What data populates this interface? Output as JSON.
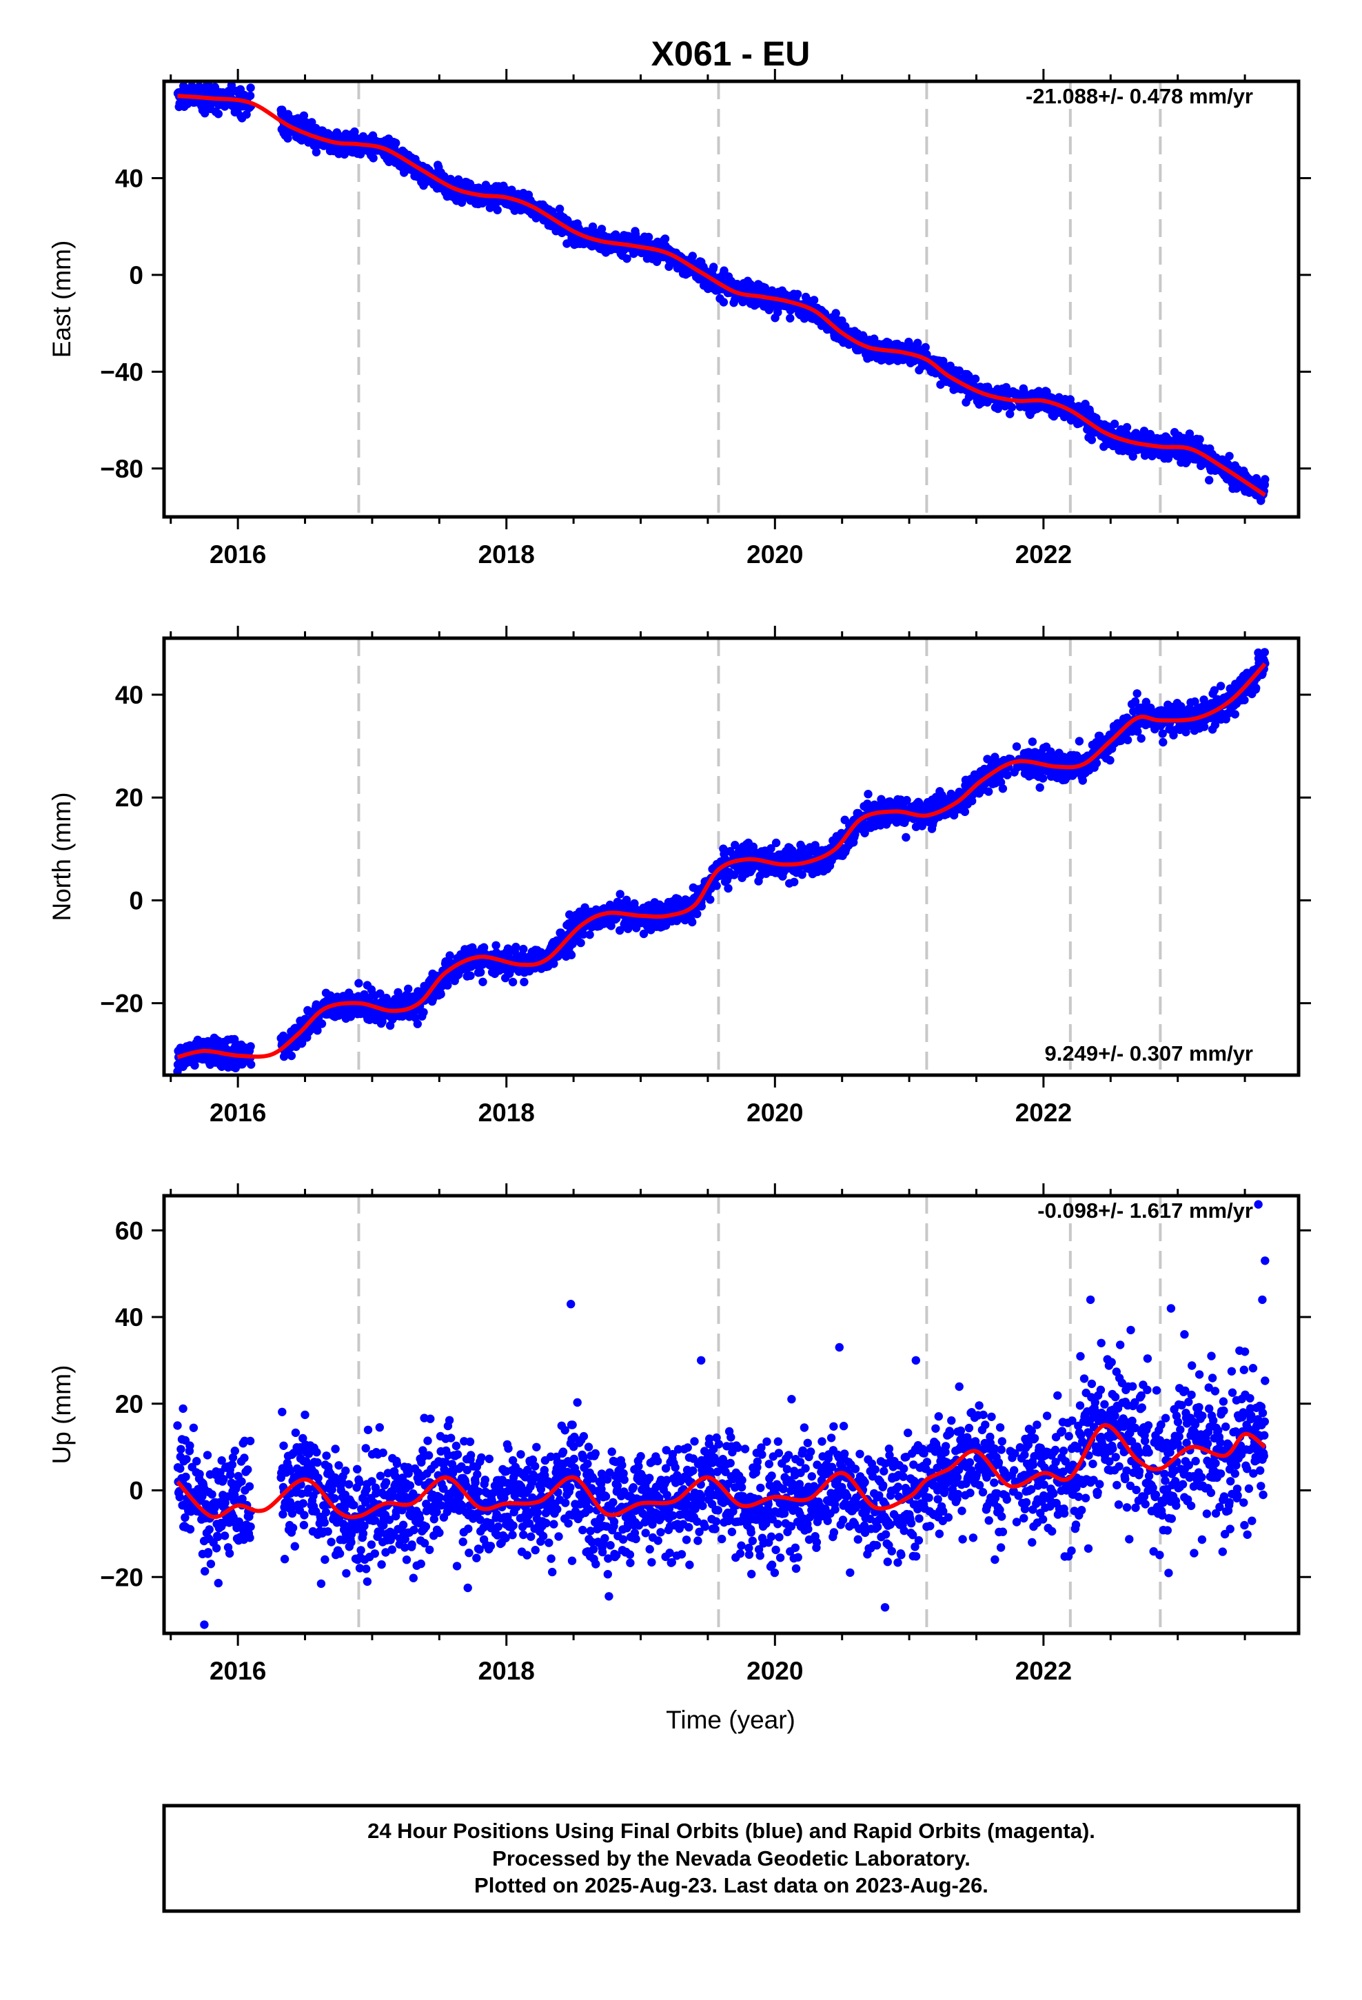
{
  "title": "X061 - EU",
  "xlabel": "Time (year)",
  "colors": {
    "points": "#0000ff",
    "fit": "#ff0000",
    "grid_dash": "#c8c8c8",
    "frame": "#000000"
  },
  "footer": [
    "24 Hour Positions Using Final Orbits (blue) and Rapid Orbits (magenta).",
    "Processed by the Nevada Geodetic Laboratory.",
    "Plotted on 2025-Aug-23. Last data on 2023-Aug-26."
  ],
  "chart_data": [
    {
      "type": "scatter",
      "component": "east",
      "ylabel": "East (mm)",
      "rate_text": "-21.088+/- 0.478 mm/yr",
      "xlim": [
        2015.45,
        2023.9
      ],
      "ylim": [
        -100,
        80
      ],
      "yticks": [
        -80,
        -40,
        0,
        40
      ],
      "xticks": [
        2016,
        2018,
        2020,
        2022
      ],
      "data_start": 2015.55,
      "data_end": 2023.65,
      "equipment_changes": [
        2016.9,
        2019.58,
        2021.13,
        2022.2,
        2022.87
      ],
      "fit_curve": {
        "x": [
          2015.55,
          2015.8,
          2016.1,
          2016.4,
          2016.7,
          2016.9,
          2017.1,
          2017.35,
          2017.6,
          2017.8,
          2018.0,
          2018.2,
          2018.5,
          2018.7,
          2018.95,
          2019.2,
          2019.45,
          2019.7,
          2019.9,
          2020.1,
          2020.3,
          2020.5,
          2020.7,
          2020.95,
          2021.13,
          2021.3,
          2021.55,
          2021.8,
          2022.0,
          2022.2,
          2022.45,
          2022.65,
          2022.87,
          2023.1,
          2023.35,
          2023.65
        ],
        "y": [
          74,
          73,
          71,
          61,
          55,
          54,
          52,
          44,
          36,
          33,
          32,
          28,
          18,
          14,
          12,
          9,
          1,
          -7,
          -9,
          -11,
          -15,
          -24,
          -30,
          -32,
          -35,
          -42,
          -49,
          -52,
          -52,
          -56,
          -65,
          -69,
          -71,
          -72,
          -80,
          -91
        ]
      },
      "scatter_noise_mm": 2.3
    },
    {
      "type": "scatter",
      "component": "north",
      "ylabel": "North (mm)",
      "rate_text": "9.249+/- 0.307 mm/yr",
      "xlim": [
        2015.45,
        2023.9
      ],
      "ylim": [
        -34,
        51
      ],
      "yticks": [
        -20,
        0,
        20,
        40
      ],
      "xticks": [
        2016,
        2018,
        2020,
        2022
      ],
      "data_start": 2015.55,
      "data_end": 2023.65,
      "equipment_changes": [
        2016.9,
        2019.58,
        2021.13,
        2022.2,
        2022.87
      ],
      "fit_curve": {
        "x": [
          2015.55,
          2015.75,
          2016.0,
          2016.25,
          2016.45,
          2016.65,
          2016.9,
          2017.15,
          2017.35,
          2017.55,
          2017.8,
          2018.1,
          2018.3,
          2018.55,
          2018.75,
          2019.0,
          2019.2,
          2019.4,
          2019.58,
          2019.8,
          2020.05,
          2020.25,
          2020.45,
          2020.65,
          2020.9,
          2021.13,
          2021.35,
          2021.55,
          2021.8,
          2022.1,
          2022.3,
          2022.5,
          2022.7,
          2022.87,
          2023.15,
          2023.4,
          2023.65
        ],
        "y": [
          -30.5,
          -29.3,
          -30.2,
          -30,
          -26,
          -21,
          -20,
          -21.5,
          -20,
          -14,
          -11,
          -12.5,
          -11.5,
          -5,
          -2.5,
          -3,
          -3,
          -1,
          6,
          8,
          7,
          7.5,
          10,
          16,
          17.3,
          16.5,
          19,
          23.5,
          27,
          26,
          26.5,
          31,
          35.5,
          35,
          35.5,
          39,
          46
        ]
      },
      "scatter_noise_mm": 1.4
    },
    {
      "type": "scatter",
      "component": "up",
      "ylabel": "Up (mm)",
      "rate_text": "-0.098+/- 1.617 mm/yr",
      "xlim": [
        2015.45,
        2023.9
      ],
      "ylim": [
        -33,
        68
      ],
      "yticks": [
        -20,
        0,
        20,
        40,
        60
      ],
      "xticks": [
        2016,
        2018,
        2020,
        2022
      ],
      "data_start": 2015.55,
      "data_end": 2023.65,
      "equipment_changes": [
        2016.9,
        2019.58,
        2021.13,
        2022.2,
        2022.87
      ],
      "fit_curve": {
        "x": [
          2015.55,
          2015.8,
          2016.0,
          2016.2,
          2016.5,
          2016.75,
          2016.9,
          2017.1,
          2017.3,
          2017.55,
          2017.8,
          2018.0,
          2018.25,
          2018.5,
          2018.75,
          2019.0,
          2019.25,
          2019.5,
          2019.75,
          2020.0,
          2020.25,
          2020.5,
          2020.75,
          2021.0,
          2021.13,
          2021.3,
          2021.5,
          2021.75,
          2022.0,
          2022.2,
          2022.45,
          2022.7,
          2022.87,
          2023.1,
          2023.35,
          2023.5,
          2023.65
        ],
        "y": [
          2,
          -6,
          -3.5,
          -4.5,
          2.5,
          -5,
          -6,
          -3,
          -3,
          3,
          -4,
          -3,
          -2.5,
          3,
          -5.5,
          -3,
          -2.5,
          3,
          -3.5,
          -1.5,
          -2,
          4,
          -4,
          -1.5,
          2.5,
          5,
          9,
          1,
          4,
          3,
          15,
          7,
          5,
          10,
          8,
          13,
          10
        ]
      },
      "scatter_noise_mm": 6.5,
      "outliers": [
        {
          "x": 2018.48,
          "y": 43
        },
        {
          "x": 2015.75,
          "y": -31
        },
        {
          "x": 2020.82,
          "y": -27
        },
        {
          "x": 2023.6,
          "y": 66
        },
        {
          "x": 2023.65,
          "y": 53
        },
        {
          "x": 2022.35,
          "y": 44
        },
        {
          "x": 2022.95,
          "y": 42
        },
        {
          "x": 2023.05,
          "y": 36
        },
        {
          "x": 2022.65,
          "y": 37
        },
        {
          "x": 2022.43,
          "y": 34
        },
        {
          "x": 2020.48,
          "y": 33
        },
        {
          "x": 2019.45,
          "y": 30
        },
        {
          "x": 2021.05,
          "y": 30
        },
        {
          "x": 2023.5,
          "y": 32
        },
        {
          "x": 2023.63,
          "y": 44
        }
      ]
    }
  ]
}
